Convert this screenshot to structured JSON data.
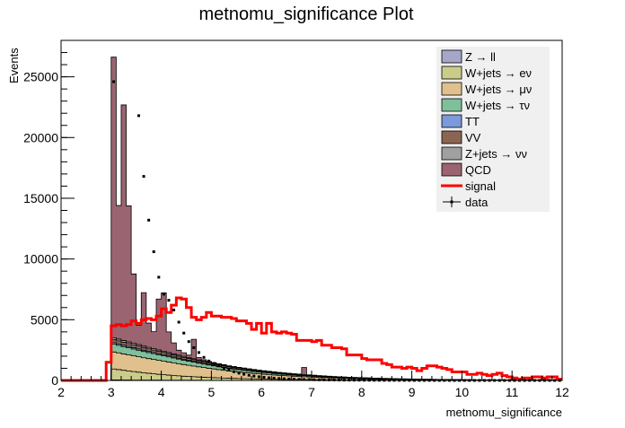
{
  "chart_data": {
    "type": "histogram",
    "title": "metnomu_significance Plot",
    "xlabel": "metnomu_significance",
    "ylabel": "Events",
    "xlim": [
      2,
      12
    ],
    "ylim": [
      0,
      28000
    ],
    "x_ticks": [
      "2",
      "3",
      "4",
      "5",
      "6",
      "7",
      "8",
      "9",
      "10",
      "11",
      "12"
    ],
    "y_ticks": [
      "0",
      "5000",
      "10000",
      "15000",
      "20000",
      "25000"
    ],
    "bin_edges": [
      2.0,
      2.1,
      2.2,
      2.3,
      2.4,
      2.5,
      2.6,
      2.7,
      2.8,
      2.9,
      3.0,
      3.1,
      3.2,
      3.3,
      3.4,
      3.5,
      3.6,
      3.7,
      3.8,
      3.9,
      4.0,
      4.1,
      4.2,
      4.3,
      4.4,
      4.5,
      4.6,
      4.7,
      4.8,
      4.9,
      5.0,
      5.1,
      5.2,
      5.3,
      5.4,
      5.5,
      5.6,
      5.7,
      5.8,
      5.9,
      6.0,
      6.1,
      6.2,
      6.3,
      6.4,
      6.5,
      6.6,
      6.7,
      6.8,
      6.9,
      7.0,
      7.1,
      7.2,
      7.3,
      7.4,
      7.5,
      7.6,
      7.7,
      7.8,
      7.9,
      8.0,
      8.1,
      8.2,
      8.3,
      8.4,
      8.5,
      8.6,
      8.7,
      8.8,
      8.9,
      9.0,
      9.1,
      9.2,
      9.3,
      9.4,
      9.5,
      9.6,
      9.7,
      9.8,
      9.9,
      10.0,
      10.1,
      10.2,
      10.3,
      10.4,
      10.5,
      10.6,
      10.7,
      10.8,
      10.9,
      11.0,
      11.1,
      11.2,
      11.3,
      11.4,
      11.5,
      11.6,
      11.7,
      11.8,
      11.9,
      12.0
    ],
    "stack_order": [
      "Z → ll",
      "W+jets → eν",
      "W+jets → μν",
      "W+jets → τν",
      "TT",
      "VV",
      "Z+jets → νν",
      "QCD"
    ],
    "series": [
      {
        "name": "Z → ll",
        "color": "#a6a6c8",
        "type": "stacked",
        "values": [
          0,
          0,
          0,
          0,
          0,
          0,
          0,
          0,
          0,
          0,
          40,
          40,
          35,
          35,
          30,
          30,
          28,
          25,
          25,
          22,
          20,
          20,
          18,
          18,
          16,
          15,
          14,
          13,
          12,
          12,
          11,
          10,
          10,
          9,
          9,
          8,
          8,
          7,
          7,
          7,
          6,
          6,
          6,
          5,
          5,
          5,
          5,
          4,
          4,
          4,
          4,
          4,
          3,
          3,
          3,
          3,
          3,
          3,
          2,
          2,
          2,
          2,
          2,
          2,
          2,
          2,
          2,
          2,
          1,
          1,
          1,
          1,
          1,
          1,
          1,
          1,
          1,
          1,
          1,
          1,
          1,
          1,
          1,
          1,
          1,
          1,
          1,
          1,
          1,
          1,
          1,
          1,
          1,
          1,
          1,
          1,
          1,
          1,
          1,
          1
        ]
      },
      {
        "name": "W+jets → eν",
        "color": "#cccc8a",
        "type": "stacked",
        "values": [
          0,
          0,
          0,
          0,
          0,
          0,
          0,
          0,
          0,
          0,
          900,
          850,
          800,
          750,
          700,
          650,
          600,
          560,
          520,
          480,
          450,
          420,
          390,
          360,
          330,
          310,
          290,
          270,
          250,
          230,
          215,
          200,
          185,
          170,
          160,
          150,
          140,
          130,
          120,
          112,
          105,
          98,
          92,
          86,
          80,
          75,
          70,
          66,
          62,
          58,
          54,
          50,
          47,
          44,
          41,
          38,
          36,
          34,
          32,
          30,
          28,
          26,
          24,
          22,
          21,
          20,
          19,
          18,
          17,
          16,
          15,
          14,
          13,
          12,
          11,
          10,
          10,
          9,
          9,
          8,
          8,
          7,
          7,
          6,
          6,
          6,
          5,
          5,
          5,
          4,
          4,
          4,
          4,
          3,
          3,
          3,
          3,
          3,
          2,
          2
        ]
      },
      {
        "name": "W+jets → μν",
        "color": "#e0c08c",
        "type": "stacked",
        "values": [
          0,
          0,
          0,
          0,
          0,
          0,
          0,
          0,
          0,
          0,
          1400,
          1380,
          1350,
          1320,
          1300,
          1270,
          1240,
          1210,
          1180,
          1150,
          1120,
          1080,
          1040,
          1000,
          960,
          920,
          880,
          840,
          800,
          760,
          720,
          680,
          640,
          600,
          570,
          540,
          510,
          480,
          450,
          425,
          400,
          375,
          350,
          330,
          310,
          290,
          270,
          255,
          240,
          225,
          210,
          196,
          183,
          170,
          158,
          147,
          137,
          128,
          119,
          111,
          103,
          96,
          89,
          83,
          77,
          72,
          67,
          62,
          58,
          54,
          50,
          46,
          43,
          40,
          37,
          34,
          32,
          30,
          28,
          26,
          24,
          22,
          20,
          19,
          18,
          17,
          16,
          15,
          14,
          13,
          12,
          11,
          10,
          9,
          9,
          8,
          8,
          7,
          7,
          6
        ]
      },
      {
        "name": "W+jets → τν",
        "color": "#7fbf9a",
        "type": "stacked",
        "values": [
          0,
          0,
          0,
          0,
          0,
          0,
          0,
          0,
          0,
          0,
          650,
          620,
          600,
          580,
          560,
          540,
          520,
          500,
          480,
          460,
          440,
          420,
          400,
          380,
          360,
          340,
          320,
          300,
          285,
          270,
          255,
          240,
          226,
          213,
          200,
          188,
          177,
          166,
          156,
          146,
          137,
          128,
          120,
          112,
          105,
          98,
          92,
          86,
          80,
          75,
          70,
          65,
          61,
          57,
          53,
          49,
          46,
          43,
          40,
          37,
          34,
          32,
          30,
          28,
          26,
          24,
          22,
          21,
          19,
          18,
          17,
          16,
          15,
          14,
          13,
          12,
          11,
          10,
          9,
          9,
          8,
          8,
          7,
          7,
          6,
          6,
          5,
          5,
          5,
          4,
          4,
          4,
          3,
          3,
          3,
          3,
          3,
          2,
          2,
          2
        ]
      },
      {
        "name": "TT",
        "color": "#7a9ad9",
        "type": "stacked",
        "values": [
          0,
          0,
          0,
          0,
          0,
          0,
          0,
          0,
          0,
          0,
          120,
          118,
          115,
          112,
          110,
          106,
          102,
          98,
          94,
          90,
          86,
          82,
          78,
          74,
          70,
          66,
          62,
          58,
          55,
          52,
          49,
          46,
          43,
          40,
          38,
          36,
          34,
          32,
          30,
          28,
          26,
          24,
          22,
          21,
          20,
          19,
          18,
          17,
          16,
          15,
          14,
          13,
          12,
          11,
          10,
          10,
          9,
          9,
          8,
          8,
          7,
          7,
          6,
          6,
          5,
          5,
          5,
          4,
          4,
          4,
          4,
          3,
          3,
          3,
          3,
          3,
          2,
          2,
          2,
          2,
          2,
          2,
          2,
          1,
          1,
          1,
          1,
          1,
          1,
          1,
          1,
          1,
          1,
          1,
          1,
          1,
          1,
          1,
          1,
          1
        ]
      },
      {
        "name": "VV",
        "color": "#8a6552",
        "type": "stacked",
        "values": [
          0,
          0,
          0,
          0,
          0,
          0,
          0,
          0,
          0,
          0,
          260,
          250,
          245,
          240,
          235,
          228,
          220,
          212,
          205,
          197,
          190,
          182,
          175,
          168,
          160,
          153,
          146,
          139,
          133,
          127,
          121,
          115,
          110,
          104,
          99,
          94,
          89,
          85,
          80,
          76,
          72,
          68,
          65,
          62,
          59,
          56,
          53,
          50,
          48,
          45,
          43,
          41,
          39,
          37,
          35,
          33,
          31,
          29,
          28,
          26,
          25,
          24,
          22,
          21,
          20,
          19,
          18,
          17,
          16,
          15,
          14,
          13,
          13,
          12,
          11,
          11,
          10,
          10,
          9,
          9,
          8,
          8,
          7,
          7,
          7,
          6,
          6,
          6,
          5,
          5,
          5,
          5,
          4,
          4,
          4,
          4,
          4,
          3,
          3,
          3
        ]
      },
      {
        "name": "Z+jets → νν",
        "color": "#a0a0a0",
        "type": "stacked",
        "values": [
          0,
          0,
          0,
          0,
          0,
          0,
          0,
          0,
          0,
          0,
          150,
          145,
          140,
          136,
          132,
          127,
          122,
          117,
          112,
          107,
          102,
          97,
          92,
          88,
          84,
          80,
          76,
          72,
          68,
          64,
          60,
          57,
          54,
          51,
          48,
          45,
          42,
          40,
          38,
          36,
          34,
          32,
          30,
          28,
          26,
          25,
          24,
          22,
          21,
          20,
          19,
          18,
          17,
          16,
          15,
          14,
          13,
          12,
          12,
          11,
          10,
          10,
          9,
          9,
          8,
          8,
          7,
          7,
          7,
          6,
          6,
          6,
          5,
          5,
          5,
          5,
          4,
          4,
          4,
          4,
          4,
          3,
          3,
          3,
          3,
          3,
          3,
          2,
          2,
          2,
          2,
          2,
          2,
          2,
          2,
          2,
          1,
          1,
          1,
          1
        ]
      },
      {
        "name": "QCD",
        "color": "#9a6470",
        "type": "stacked",
        "values": [
          0,
          0,
          0,
          0,
          0,
          0,
          0,
          0,
          0,
          0,
          23100,
          11000,
          19400,
          11200,
          5700,
          1600,
          4400,
          2000,
          1400,
          4200,
          4800,
          1700,
          900,
          400,
          300,
          200,
          1600,
          200,
          100,
          50,
          40,
          30,
          30,
          20,
          20,
          20,
          20,
          20,
          20,
          20,
          20,
          20,
          20,
          20,
          20,
          20,
          20,
          20,
          600,
          20,
          20,
          10,
          10,
          10,
          10,
          10,
          10,
          10,
          10,
          10,
          10,
          10,
          10,
          10,
          10,
          10,
          10,
          10,
          10,
          10,
          10,
          10,
          10,
          10,
          10,
          10,
          10,
          10,
          10,
          10,
          10,
          10,
          10,
          10,
          10,
          10,
          10,
          10,
          10,
          10,
          10,
          10,
          10,
          10,
          10,
          10,
          10,
          10,
          10,
          10
        ]
      },
      {
        "name": "signal",
        "color": "#ff0000",
        "type": "line",
        "values": [
          0,
          0,
          0,
          0,
          0,
          0,
          0,
          0,
          0,
          1500,
          4500,
          4600,
          4500,
          4600,
          4900,
          4700,
          5000,
          5100,
          5000,
          5300,
          5900,
          5600,
          6200,
          6800,
          6700,
          6000,
          5200,
          5000,
          5200,
          5600,
          5300,
          5300,
          5200,
          5200,
          5100,
          4900,
          4900,
          4700,
          4200,
          4700,
          3900,
          4700,
          4000,
          3900,
          4000,
          3900,
          3800,
          3300,
          3300,
          3300,
          3200,
          3300,
          2900,
          2900,
          2700,
          2700,
          2600,
          2100,
          2100,
          2100,
          1800,
          1700,
          1700,
          1700,
          1400,
          1300,
          1100,
          1100,
          1000,
          1100,
          1000,
          800,
          1000,
          1200,
          1200,
          1100,
          1000,
          900,
          700,
          700,
          700,
          500,
          500,
          600,
          500,
          400,
          500,
          600,
          400,
          300,
          200,
          100,
          200,
          200,
          300,
          300,
          200,
          300,
          300,
          100
        ]
      },
      {
        "name": "data",
        "color": "#000000",
        "type": "points",
        "values": [
          0,
          0,
          0,
          0,
          0,
          0,
          0,
          0,
          0,
          0,
          24600,
          0,
          0,
          0,
          0,
          21800,
          16800,
          13200,
          10600,
          8500,
          7100,
          6600,
          5800,
          4800,
          3900,
          3200,
          2700,
          2300,
          1900,
          1600,
          1400,
          1200,
          1000,
          850,
          720,
          600,
          510,
          430,
          360,
          300,
          260,
          220,
          190,
          160,
          140,
          120,
          100,
          90,
          80,
          70,
          60,
          55,
          50,
          45,
          40,
          35,
          30,
          28,
          25,
          22,
          20,
          18,
          16,
          14,
          13,
          12,
          11,
          10,
          9,
          8,
          7,
          6,
          6,
          5,
          5,
          4,
          4,
          4,
          3,
          3,
          3,
          3,
          2,
          2,
          2,
          2,
          2,
          2,
          1,
          1,
          1,
          1,
          1,
          1,
          1,
          1,
          1,
          1,
          1,
          1
        ]
      }
    ],
    "legend": {
      "placement": "top-right",
      "entries": [
        "Z → ll",
        "W+jets → eν",
        "W+jets → μν",
        "W+jets → τν",
        "TT",
        "VV",
        "Z+jets → νν",
        "QCD",
        "signal",
        "data"
      ]
    }
  }
}
